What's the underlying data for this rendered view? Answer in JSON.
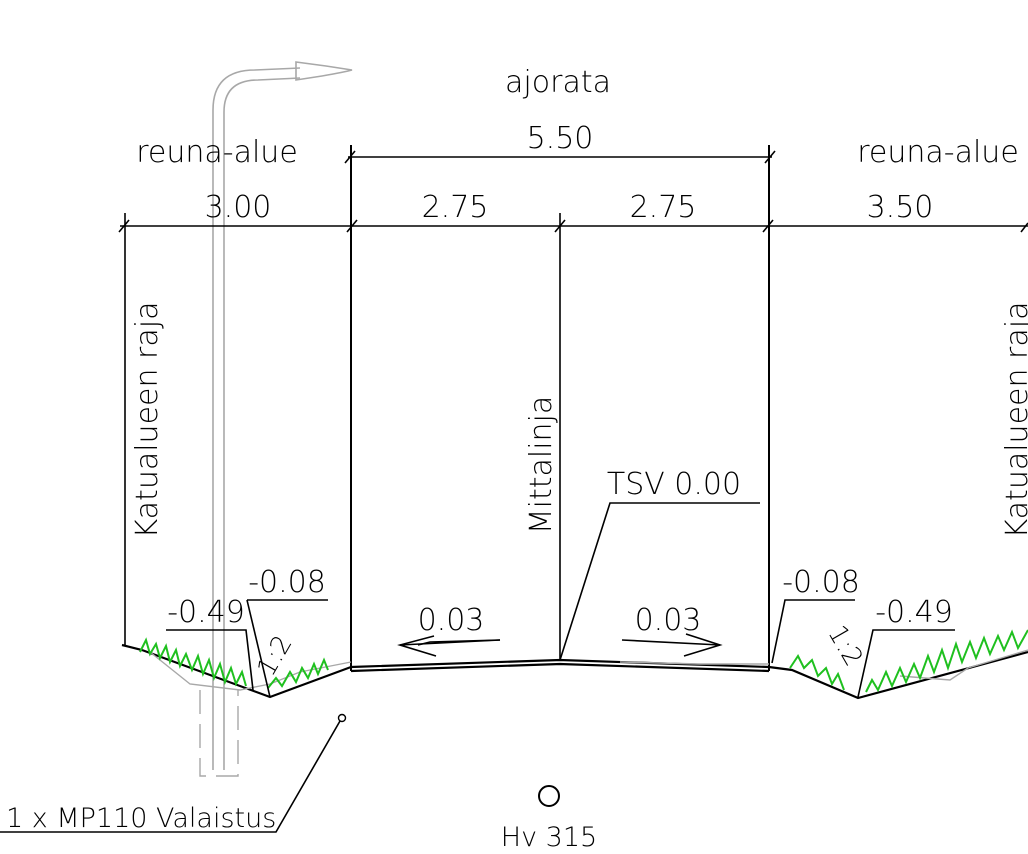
{
  "labels": {
    "ajorata": "ajorata",
    "reuna_left": "reuna-alue",
    "reuna_right": "reuna-alue",
    "width_total": "5.50",
    "width_left_edge": "3.00",
    "width_lane_left": "2.75",
    "width_lane_right": "2.75",
    "width_right_edge": "3.50",
    "boundary_left": "Katualueen raja",
    "boundary_right": "Katualueen raja",
    "centerline": "Mittalinja",
    "tsv": "TSV 0.00",
    "slope_left": "0.03",
    "slope_right": "0.03",
    "level_left_shoulder": "-0.08",
    "level_left_ditch": "-0.49",
    "level_right_shoulder": "-0.08",
    "level_right_ditch": "-0.49",
    "ratio_left": "1:2",
    "ratio_right": "1:2",
    "lighting": "1 x MP110 Valaistus",
    "hydrant": "Hv 315"
  },
  "colors": {
    "line": "#000000",
    "existing": "#a8a8a8",
    "grass": "#1fc01f"
  }
}
